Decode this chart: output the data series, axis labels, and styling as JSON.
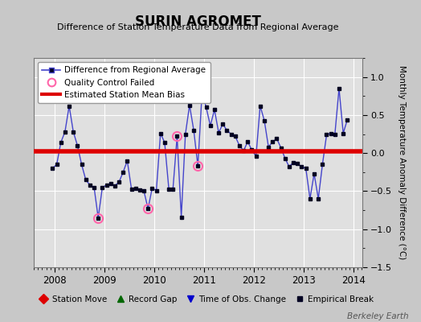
{
  "title": "SURIN AGROMET",
  "subtitle": "Difference of Station Temperature Data from Regional Average",
  "ylabel": "Monthly Temperature Anomaly Difference (°C)",
  "bias": 0.02,
  "xlim": [
    2007.58,
    2014.17
  ],
  "ylim": [
    -1.5,
    1.25
  ],
  "yticks": [
    -1.5,
    -1.0,
    -0.5,
    0.0,
    0.5,
    1.0
  ],
  "background_color": "#c8c8c8",
  "plot_bg_color": "#e0e0e0",
  "line_color": "#4444cc",
  "marker_color": "#000022",
  "bias_color": "#dd0000",
  "qc_color": "#ff66aa",
  "watermark": "Berkeley Earth",
  "times": [
    2007.958,
    2008.042,
    2008.125,
    2008.208,
    2008.292,
    2008.375,
    2008.458,
    2008.542,
    2008.625,
    2008.708,
    2008.792,
    2008.875,
    2008.958,
    2009.042,
    2009.125,
    2009.208,
    2009.292,
    2009.375,
    2009.458,
    2009.542,
    2009.625,
    2009.708,
    2009.792,
    2009.875,
    2009.958,
    2010.042,
    2010.125,
    2010.208,
    2010.292,
    2010.375,
    2010.458,
    2010.542,
    2010.625,
    2010.708,
    2010.792,
    2010.875,
    2010.958,
    2011.042,
    2011.125,
    2011.208,
    2011.292,
    2011.375,
    2011.458,
    2011.542,
    2011.625,
    2011.708,
    2011.792,
    2011.875,
    2011.958,
    2012.042,
    2012.125,
    2012.208,
    2012.292,
    2012.375,
    2012.458,
    2012.542,
    2012.625,
    2012.708,
    2012.792,
    2012.875,
    2012.958,
    2013.042,
    2013.125,
    2013.208,
    2013.292,
    2013.375,
    2013.458,
    2013.542,
    2013.625,
    2013.708,
    2013.792,
    2013.875
  ],
  "values": [
    -0.2,
    -0.15,
    0.14,
    0.28,
    0.62,
    0.28,
    0.1,
    -0.15,
    -0.35,
    -0.42,
    -0.45,
    -0.85,
    -0.45,
    -0.42,
    -0.4,
    -0.43,
    -0.38,
    -0.25,
    -0.1,
    -0.47,
    -0.46,
    -0.48,
    -0.5,
    -0.73,
    -0.46,
    -0.49,
    0.26,
    0.14,
    -0.47,
    -0.47,
    0.22,
    -0.84,
    0.25,
    0.63,
    0.3,
    -0.17,
    0.79,
    0.6,
    0.36,
    0.57,
    0.27,
    0.38,
    0.3,
    0.25,
    0.22,
    0.1,
    0.03,
    0.15,
    0.04,
    -0.04,
    0.62,
    0.43,
    0.08,
    0.15,
    0.19,
    0.07,
    -0.07,
    -0.18,
    -0.12,
    -0.14,
    -0.18,
    -0.2,
    -0.6,
    -0.27,
    -0.6,
    -0.15,
    0.24,
    0.26,
    0.25,
    0.85,
    0.26,
    0.44
  ],
  "qc_failed_indices": [
    11,
    23,
    30,
    35,
    36
  ],
  "xtick_positions": [
    2008,
    2009,
    2010,
    2011,
    2012,
    2013,
    2014
  ],
  "xtick_labels": [
    "2008",
    "2009",
    "2010",
    "2011",
    "2012",
    "2013",
    "2014"
  ]
}
